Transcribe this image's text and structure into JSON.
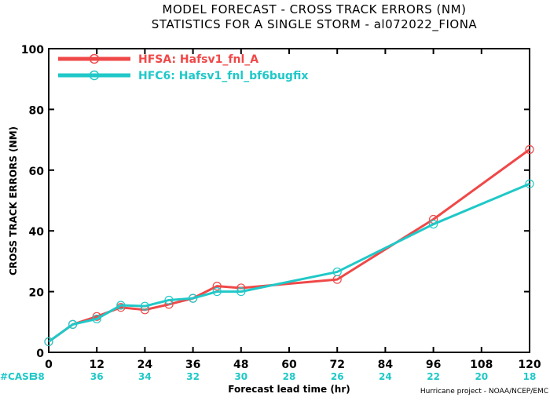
{
  "chart_data": {
    "type": "line",
    "title": "MODEL FORECAST - CROSS TRACK ERRORS (NM)",
    "subtitle": "STATISTICS FOR A SINGLE STORM - al072022_FIONA",
    "xlabel": "Forecast lead time (hr)",
    "ylabel": "CROSS TRACK ERRORS (NM)",
    "xlim": [
      0,
      120
    ],
    "ylim": [
      0,
      100
    ],
    "x_ticks": [
      0,
      12,
      24,
      36,
      48,
      60,
      72,
      84,
      96,
      108,
      120
    ],
    "x_tick_labels": [
      "0",
      "12",
      "24",
      "36",
      "48",
      "60",
      "72",
      "84",
      "96",
      "108",
      "120"
    ],
    "y_ticks": [
      0,
      20,
      40,
      60,
      80,
      100
    ],
    "y_tick_labels": [
      "0",
      "20",
      "40",
      "60",
      "80",
      "100"
    ],
    "legend_position": "top-left",
    "series": [
      {
        "name": "HFSA: Hafsv1_fnl_A",
        "color": "#f04848",
        "x": [
          0,
          6,
          12,
          18,
          24,
          30,
          36,
          42,
          48,
          72,
          96,
          120
        ],
        "values": [
          3.5,
          9.2,
          11.8,
          14.8,
          14.0,
          15.8,
          17.8,
          21.8,
          21.2,
          24.0,
          43.8,
          66.8
        ]
      },
      {
        "name": "HFC6: Hafsv1_fnl_bf6bugfix",
        "color": "#20c8c8",
        "x": [
          0,
          6,
          12,
          18,
          24,
          30,
          36,
          42,
          48,
          72,
          96,
          120
        ],
        "values": [
          3.5,
          9.2,
          11.0,
          15.5,
          15.2,
          17.2,
          17.8,
          20.0,
          20.0,
          26.5,
          42.2,
          55.5
        ]
      }
    ],
    "case_counts": {
      "label": "#CASE",
      "x": [
        0,
        12,
        24,
        36,
        48,
        60,
        72,
        84,
        96,
        108,
        120
      ],
      "values": [
        "38",
        "36",
        "34",
        "32",
        "30",
        "28",
        "26",
        "24",
        "22",
        "20",
        "18"
      ]
    },
    "credit": "Hurricane project - NOAA/NCEP/EMC"
  }
}
